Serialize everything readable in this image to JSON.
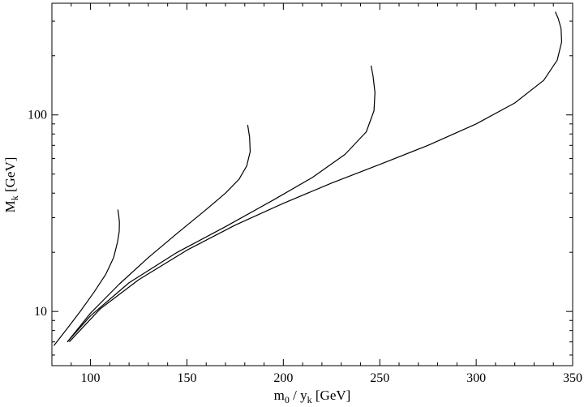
{
  "chart_data": {
    "type": "line",
    "title": "",
    "xlabel": {
      "main": "m",
      "sub1": "0",
      "mid": " / y",
      "sub2": "k",
      "unit": " [GeV]"
    },
    "ylabel": {
      "main": "M",
      "sub": "k",
      "unit": " [GeV]"
    },
    "xlim": [
      80,
      350
    ],
    "ylim": [
      5.3,
      370
    ],
    "yscale": "log",
    "grid": false,
    "legend": "none",
    "x_ticks": [
      100,
      150,
      200,
      250,
      300,
      350
    ],
    "x_tick_labels": [
      "100",
      "150",
      "200",
      "250",
      "300",
      "350"
    ],
    "y_major_ticks": [
      10,
      100
    ],
    "y_tick_labels": [
      "10",
      "100"
    ],
    "series": [
      {
        "x": [
          81,
          88,
          95,
          102,
          108,
          112,
          114,
          114.9,
          115,
          114.6,
          114.2
        ],
        "y": [
          6.7,
          8.2,
          10.1,
          12.6,
          15.5,
          18.8,
          22.5,
          25.5,
          28.5,
          31.0,
          33.0
        ]
      },
      {
        "x": [
          88,
          100,
          115,
          130,
          145,
          160,
          170,
          177,
          181,
          182.8,
          182.5,
          181.5
        ],
        "y": [
          7.0,
          9.8,
          13.8,
          18.8,
          25.0,
          33.0,
          40.0,
          47.0,
          55.0,
          65.0,
          77.0,
          89.0
        ]
      },
      {
        "x": [
          88,
          100,
          120,
          145,
          170,
          195,
          215,
          232,
          243,
          247,
          247.5,
          246.5,
          245.5
        ],
        "y": [
          7.0,
          9.5,
          14.0,
          20.0,
          27.0,
          37.0,
          48.0,
          63.0,
          82.0,
          105.0,
          130.0,
          158.0,
          178.0
        ]
      },
      {
        "x": [
          89,
          105,
          125,
          150,
          175,
          200,
          225,
          250,
          275,
          300,
          320,
          335,
          342,
          344.3,
          344,
          342.5,
          341
        ],
        "y": [
          7.0,
          10.3,
          14.5,
          20.5,
          27.5,
          35.5,
          45.0,
          56.0,
          70.0,
          90.0,
          115.0,
          150.0,
          190.0,
          235.0,
          275.0,
          310.0,
          335.0
        ]
      }
    ]
  }
}
